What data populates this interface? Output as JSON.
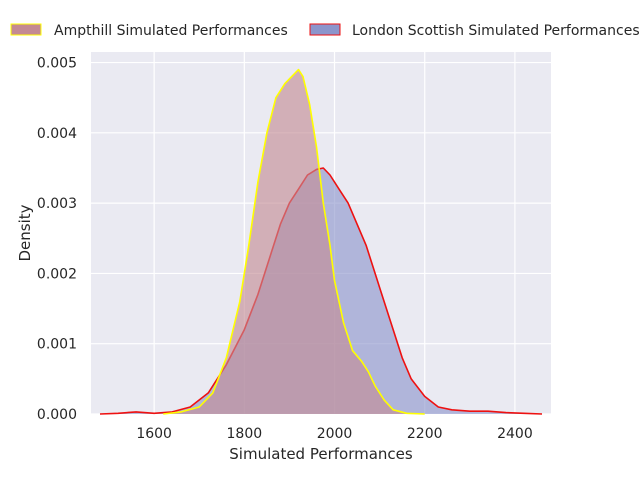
{
  "chart_data": {
    "type": "area",
    "xlabel": "Simulated Performances",
    "ylabel": "Density",
    "xlim": [
      1460,
      2480
    ],
    "ylim": [
      0,
      0.00515
    ],
    "x_ticks": [
      1600,
      1800,
      2000,
      2200,
      2400
    ],
    "y_ticks": [
      0.0,
      0.001,
      0.002,
      0.003,
      0.004,
      0.005
    ],
    "y_tick_labels": [
      "0.000",
      "0.001",
      "0.002",
      "0.003",
      "0.004",
      "0.005"
    ],
    "grid": true,
    "legend_position": "top, outside plot",
    "series": [
      {
        "name": "Ampthill Simulated Performances",
        "fill": "#c48a93",
        "line": "#ffff00",
        "points": [
          [
            1620,
            0.0
          ],
          [
            1660,
            3e-05
          ],
          [
            1700,
            0.0001
          ],
          [
            1730,
            0.0003
          ],
          [
            1760,
            0.0008
          ],
          [
            1790,
            0.0016
          ],
          [
            1810,
            0.0024
          ],
          [
            1830,
            0.0033
          ],
          [
            1850,
            0.004
          ],
          [
            1870,
            0.0045
          ],
          [
            1890,
            0.0047
          ],
          [
            1905,
            0.0048
          ],
          [
            1920,
            0.0049
          ],
          [
            1930,
            0.0048
          ],
          [
            1945,
            0.0044
          ],
          [
            1960,
            0.0038
          ],
          [
            1975,
            0.003
          ],
          [
            1990,
            0.0024
          ],
          [
            2000,
            0.0019
          ],
          [
            2020,
            0.0013
          ],
          [
            2040,
            0.0009
          ],
          [
            2060,
            0.00075
          ],
          [
            2075,
            0.0006
          ],
          [
            2090,
            0.0004
          ],
          [
            2110,
            0.0002
          ],
          [
            2130,
            6e-05
          ],
          [
            2160,
            1e-05
          ],
          [
            2200,
            0.0
          ]
        ]
      },
      {
        "name": "London Scottish Simulated Performances",
        "fill": "#8c95cc",
        "line": "#ee1111",
        "points": [
          [
            1480,
            0.0
          ],
          [
            1520,
            1e-05
          ],
          [
            1560,
            3e-05
          ],
          [
            1600,
            1e-05
          ],
          [
            1640,
            3e-05
          ],
          [
            1680,
            0.0001
          ],
          [
            1720,
            0.0003
          ],
          [
            1760,
            0.0007
          ],
          [
            1800,
            0.0012
          ],
          [
            1830,
            0.0017
          ],
          [
            1860,
            0.0023
          ],
          [
            1880,
            0.0027
          ],
          [
            1900,
            0.003
          ],
          [
            1920,
            0.0032
          ],
          [
            1940,
            0.0034
          ],
          [
            1960,
            0.00348
          ],
          [
            1975,
            0.0035
          ],
          [
            1990,
            0.0034
          ],
          [
            2010,
            0.0032
          ],
          [
            2030,
            0.003
          ],
          [
            2050,
            0.0027
          ],
          [
            2070,
            0.0024
          ],
          [
            2090,
            0.002
          ],
          [
            2110,
            0.0016
          ],
          [
            2130,
            0.0012
          ],
          [
            2150,
            0.0008
          ],
          [
            2170,
            0.0005
          ],
          [
            2200,
            0.00025
          ],
          [
            2230,
            0.0001
          ],
          [
            2260,
            6e-05
          ],
          [
            2300,
            4e-05
          ],
          [
            2340,
            4e-05
          ],
          [
            2380,
            2e-05
          ],
          [
            2420,
            1e-05
          ],
          [
            2460,
            0.0
          ]
        ]
      }
    ]
  }
}
